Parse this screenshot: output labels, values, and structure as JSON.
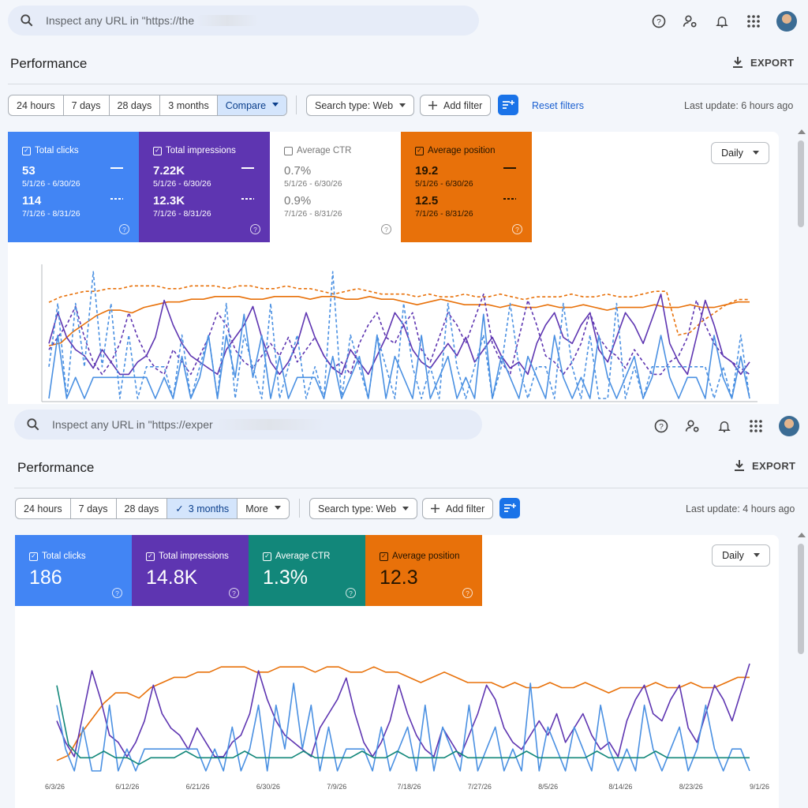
{
  "panel1": {
    "search_text": "Inspect any URL in \"https://the",
    "title": "Performance",
    "export_label": "EXPORT",
    "ranges": [
      {
        "label": "24 hours"
      },
      {
        "label": "7 days"
      },
      {
        "label": "28 days"
      },
      {
        "label": "3 months"
      },
      {
        "label": "Compare"
      }
    ],
    "search_type": "Search type: Web",
    "add_filter": "Add filter",
    "reset_filters": "Reset filters",
    "last_update": "Last update: 6 hours ago",
    "daily": "Daily",
    "metrics": [
      {
        "label": "Total clicks",
        "v1": "53",
        "d1": "5/1/26 - 6/30/26",
        "v2": "114",
        "d2": "7/1/26 - 8/31/26",
        "color": "#4285f4",
        "checked": true
      },
      {
        "label": "Total impressions",
        "v1": "7.22K",
        "d1": "5/1/26 - 6/30/26",
        "v2": "12.3K",
        "d2": "7/1/26 - 8/31/26",
        "color": "#5e35b1",
        "checked": true
      },
      {
        "label": "Average CTR",
        "v1": "0.7%",
        "d1": "5/1/26 - 6/30/26",
        "v2": "0.9%",
        "d2": "7/1/26 - 8/31/26",
        "color": "#ffffff",
        "checked": false
      },
      {
        "label": "Average position",
        "v1": "19.2",
        "d1": "5/1/26 - 6/30/26",
        "v2": "12.5",
        "d2": "7/1/26 - 8/31/26",
        "color": "#e8710a",
        "checked": true
      }
    ]
  },
  "panel2": {
    "search_text": "Inspect any URL in \"https://exper",
    "title": "Performance",
    "export_label": "EXPORT",
    "ranges": [
      {
        "label": "24 hours"
      },
      {
        "label": "7 days"
      },
      {
        "label": "28 days"
      },
      {
        "label": "3 months"
      },
      {
        "label": "More"
      }
    ],
    "search_type": "Search type: Web",
    "add_filter": "Add filter",
    "last_update": "Last update: 4 hours ago",
    "daily": "Daily",
    "metrics": [
      {
        "label": "Total clicks",
        "value": "186",
        "color": "#4285f4"
      },
      {
        "label": "Total impressions",
        "value": "14.8K",
        "color": "#5e35b1"
      },
      {
        "label": "Average CTR",
        "value": "1.3%",
        "color": "#12877a"
      },
      {
        "label": "Average position",
        "value": "12.3",
        "color": "#e8710a"
      }
    ],
    "x_ticks": [
      "6/3/26",
      "6/12/26",
      "6/21/26",
      "6/30/26",
      "7/9/26",
      "7/18/26",
      "7/27/26",
      "8/5/26",
      "8/14/26",
      "8/23/26",
      "9/1/26"
    ]
  },
  "chart_data": [
    {
      "type": "line",
      "title": "",
      "series": [
        {
          "name": "Total clicks",
          "values": [
            3,
            1,
            0,
            2,
            0,
            0,
            3,
            0,
            1,
            0,
            1,
            1,
            1,
            1,
            1,
            1,
            1,
            0,
            1,
            0,
            2,
            0,
            1,
            3,
            0,
            3,
            1,
            4,
            1,
            3,
            0,
            2,
            0,
            1,
            1,
            1,
            0,
            2,
            0,
            1,
            2,
            0,
            3,
            0,
            2,
            1,
            0,
            3,
            0,
            1,
            2,
            0,
            1,
            0,
            4,
            0,
            2,
            1,
            0,
            2,
            1,
            0,
            3,
            1,
            0,
            1,
            0,
            3,
            1,
            0,
            1,
            2,
            0,
            1,
            3,
            1,
            0,
            1,
            1,
            0
          ]
        },
        {
          "name": "Total impressions",
          "values": [
            55,
            40,
            30,
            60,
            90,
            70,
            45,
            40,
            30,
            40,
            55,
            80,
            60,
            50,
            45,
            35,
            50,
            40,
            30,
            30,
            40,
            45,
            60,
            90,
            70,
            55,
            45,
            40,
            35,
            30,
            50,
            60,
            70,
            85,
            60,
            40,
            30,
            40,
            55,
            80,
            60,
            45,
            35,
            30,
            50,
            40,
            30,
            45,
            60,
            80,
            70,
            50,
            40,
            35,
            45,
            55,
            45,
            60,
            40,
            50,
            60,
            45,
            35,
            40,
            30,
            55,
            70,
            80,
            60,
            55,
            70,
            80,
            50,
            40,
            60,
            80,
            70,
            55,
            75,
            95
          ]
        },
        {
          "name": "Average CTR",
          "values": [
            1.3,
            0.4,
            0.2,
            0.2,
            0.3,
            0.2,
            0.2,
            0.1,
            0.2,
            0.2,
            0.2,
            0.3,
            0.2,
            0.2,
            0.2,
            0.2,
            0.3,
            0.2,
            0.2,
            0.2,
            0.2,
            0.3,
            0.2,
            0.2,
            0.2,
            0.2,
            0.3,
            0.2,
            0.2,
            0.3,
            0.2,
            0.2,
            0.2,
            0.2,
            0.3,
            0.2,
            0.2,
            0.2,
            0.2,
            0.2,
            0.3,
            0.2,
            0.2,
            0.2,
            0.2,
            0.2,
            0.3,
            0.2,
            0.2,
            0.2,
            0.2,
            0.3,
            0.2,
            0.2,
            0.2,
            0.2,
            0.2,
            0.2,
            0.2,
            0.2
          ]
        },
        {
          "name": "Average position",
          "values": [
            22,
            21,
            17,
            14,
            11,
            9,
            9,
            10,
            8,
            7,
            6,
            6,
            5,
            5,
            4,
            4,
            4,
            5,
            5,
            4,
            4,
            4,
            5,
            4,
            4,
            5,
            5,
            4,
            5,
            5,
            6,
            7,
            6,
            5,
            6,
            7,
            7,
            7,
            8,
            7,
            8,
            8,
            7,
            8,
            8,
            7,
            8,
            9,
            8,
            8,
            8,
            7,
            8,
            8,
            7,
            8,
            8,
            7,
            6,
            6
          ]
        }
      ]
    }
  ]
}
